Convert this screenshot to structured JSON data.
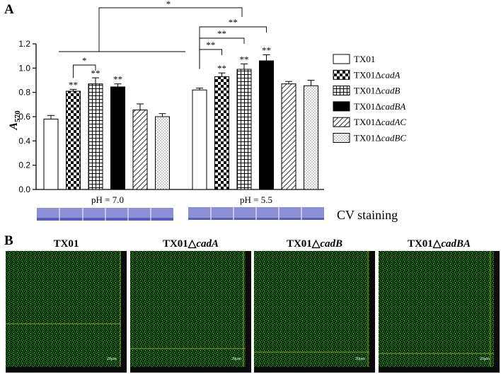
{
  "panel_a_label": "A",
  "panel_b_label": "B",
  "chart_data": {
    "type": "bar",
    "title": "",
    "xlabel": "",
    "ylabel": "A570",
    "ylabel_main": "A",
    "ylabel_sub": "570",
    "ylim": [
      0,
      1.2
    ],
    "yticks": [
      "0.0",
      "0.2",
      "0.4",
      "0.6",
      "0.8",
      "1.0",
      "1.2"
    ],
    "grid": false,
    "legend_position": "right",
    "categories": [
      "pH = 7.0",
      "pH = 5.5"
    ],
    "series": [
      {
        "name_main": "TX01",
        "name_italic": "",
        "values": [
          0.58,
          0.82
        ],
        "errors": [
          0.03,
          0.015
        ],
        "pattern": "white",
        "sig": [
          "",
          ""
        ]
      },
      {
        "name_main": "TX01Δ",
        "name_italic": "cadA",
        "values": [
          0.81,
          0.93
        ],
        "errors": [
          0.015,
          0.03
        ],
        "pattern": "checker",
        "sig": [
          "**",
          "**"
        ]
      },
      {
        "name_main": "TX01Δ",
        "name_italic": "cadB",
        "values": [
          0.87,
          0.99
        ],
        "errors": [
          0.05,
          0.045
        ],
        "pattern": "grid",
        "sig": [
          "**",
          "**"
        ]
      },
      {
        "name_main": "TX01Δ",
        "name_italic": "cadBA",
        "values": [
          0.845,
          1.06
        ],
        "errors": [
          0.025,
          0.05
        ],
        "pattern": "black",
        "sig": [
          "**",
          "**"
        ]
      },
      {
        "name_main": "TX01Δ",
        "name_italic": "cadAC",
        "values": [
          0.655,
          0.87
        ],
        "errors": [
          0.05,
          0.02
        ],
        "pattern": "diagonal",
        "sig": [
          "",
          ""
        ]
      },
      {
        "name_main": "TX01Δ",
        "name_italic": "cadBC",
        "values": [
          0.6,
          0.855
        ],
        "errors": [
          0.025,
          0.045
        ],
        "pattern": "dots",
        "sig": [
          "",
          ""
        ]
      }
    ],
    "brackets": [
      {
        "group": 0,
        "from": 1,
        "to": 2,
        "label": "*"
      },
      {
        "group": 1,
        "from": 0,
        "to": 1,
        "label": "**"
      },
      {
        "group": 1,
        "from": 0,
        "to": 2,
        "label": "**"
      },
      {
        "group": 1,
        "from": 0,
        "to": 3,
        "label": "**"
      }
    ],
    "cross_bracket_label": "*"
  },
  "cv_label": "CV staining",
  "images": [
    {
      "title_main": "TX01",
      "title_italic": "",
      "scale": "20μm"
    },
    {
      "title_main": "TX01△",
      "title_italic": "cadA",
      "scale": "20μm"
    },
    {
      "title_main": "TX01△",
      "title_italic": "cadB",
      "scale": "20μm"
    },
    {
      "title_main": "TX01△",
      "title_italic": "cadBA",
      "scale": "20μm"
    }
  ]
}
